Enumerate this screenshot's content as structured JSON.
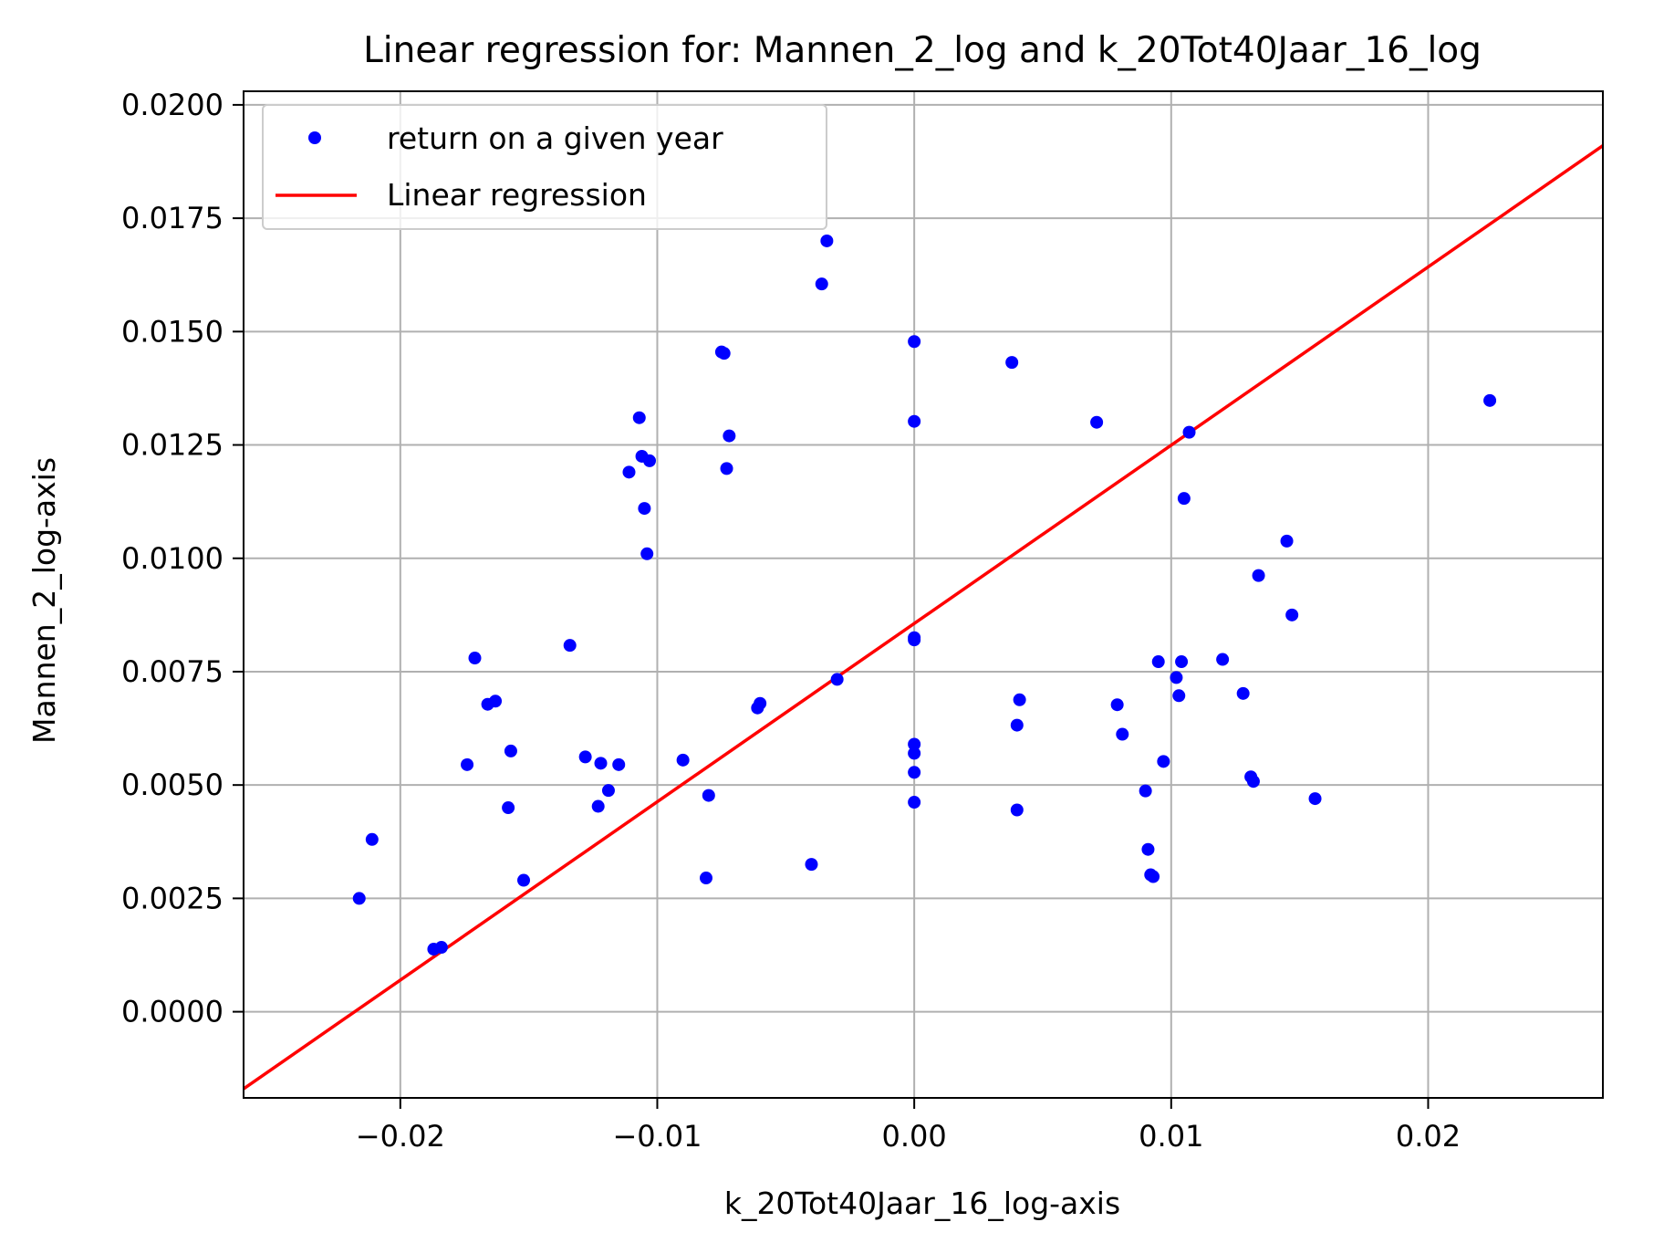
{
  "chart_data": {
    "type": "scatter",
    "title": "Linear regression for: Mannen_2_log and k_20Tot40Jaar_16_log",
    "xlabel": "k_20Tot40Jaar_16_log-axis",
    "ylabel": "Mannen_2_log-axis",
    "xlim": [
      -0.0261,
      0.0268
    ],
    "ylim": [
      -0.0019,
      0.0203
    ],
    "xticks": [
      -0.02,
      -0.01,
      0.0,
      0.01,
      0.02
    ],
    "xtick_labels": [
      "−0.02",
      "−0.01",
      "0.00",
      "0.01",
      "0.02"
    ],
    "yticks": [
      0.0,
      0.0025,
      0.005,
      0.0075,
      0.01,
      0.0125,
      0.015,
      0.0175,
      0.02
    ],
    "ytick_labels": [
      "0.0000",
      "0.0025",
      "0.0050",
      "0.0075",
      "0.0100",
      "0.0125",
      "0.0150",
      "0.0175",
      "0.0200"
    ],
    "grid": true,
    "legend_position": "top-left",
    "colors": {
      "points": "#0000ff",
      "line": "#ff0000",
      "grid": "#b0b0b0"
    },
    "series": [
      {
        "name": "return on a given year",
        "kind": "scatter",
        "points": [
          [
            -0.0216,
            0.0025
          ],
          [
            -0.0211,
            0.0038
          ],
          [
            -0.0187,
            0.00138
          ],
          [
            -0.0184,
            0.00142
          ],
          [
            -0.0171,
            0.0078
          ],
          [
            -0.0174,
            0.00545
          ],
          [
            -0.0166,
            0.00678
          ],
          [
            -0.0163,
            0.00685
          ],
          [
            -0.0157,
            0.00575
          ],
          [
            -0.0158,
            0.0045
          ],
          [
            -0.0152,
            0.0029
          ],
          [
            -0.0134,
            0.00808
          ],
          [
            -0.0128,
            0.00562
          ],
          [
            -0.0122,
            0.00548
          ],
          [
            -0.0123,
            0.00453
          ],
          [
            -0.0119,
            0.00488
          ],
          [
            -0.0115,
            0.00545
          ],
          [
            -0.0111,
            0.0119
          ],
          [
            -0.0107,
            0.0131
          ],
          [
            -0.0106,
            0.01225
          ],
          [
            -0.0105,
            0.0111
          ],
          [
            -0.0103,
            0.01215
          ],
          [
            -0.0104,
            0.0101
          ],
          [
            -0.009,
            0.00555
          ],
          [
            -0.008,
            0.00477
          ],
          [
            -0.0081,
            0.00295
          ],
          [
            -0.0075,
            0.01455
          ],
          [
            -0.0074,
            0.01452
          ],
          [
            -0.0072,
            0.0127
          ],
          [
            -0.0073,
            0.01198
          ],
          [
            -0.0061,
            0.0067
          ],
          [
            -0.006,
            0.0068
          ],
          [
            -0.004,
            0.00325
          ],
          [
            -0.0036,
            0.01605
          ],
          [
            -0.0034,
            0.017
          ],
          [
            -0.003,
            0.00733
          ],
          [
            0.0,
            0.01478
          ],
          [
            0.0,
            0.01302
          ],
          [
            0.0,
            0.00825
          ],
          [
            0.0,
            0.0082
          ],
          [
            0.0,
            0.0059
          ],
          [
            0.0,
            0.0057
          ],
          [
            0.0,
            0.00528
          ],
          [
            0.0,
            0.00462
          ],
          [
            0.0038,
            0.01432
          ],
          [
            0.0041,
            0.00688
          ],
          [
            0.004,
            0.00632
          ],
          [
            0.004,
            0.00445
          ],
          [
            0.0071,
            0.013
          ],
          [
            0.0079,
            0.00677
          ],
          [
            0.0081,
            0.00612
          ],
          [
            0.009,
            0.00487
          ],
          [
            0.0091,
            0.00358
          ],
          [
            0.0092,
            0.00302
          ],
          [
            0.0093,
            0.00298
          ],
          [
            0.0095,
            0.00772
          ],
          [
            0.0097,
            0.00552
          ],
          [
            0.0102,
            0.00737
          ],
          [
            0.0103,
            0.00697
          ],
          [
            0.0104,
            0.00772
          ],
          [
            0.0105,
            0.01132
          ],
          [
            0.0107,
            0.01278
          ],
          [
            0.012,
            0.00777
          ],
          [
            0.0128,
            0.00702
          ],
          [
            0.0131,
            0.00518
          ],
          [
            0.0132,
            0.00508
          ],
          [
            0.0134,
            0.00962
          ],
          [
            0.0145,
            0.01038
          ],
          [
            0.0147,
            0.00875
          ],
          [
            0.0156,
            0.0047
          ],
          [
            0.0224,
            0.01348
          ]
        ]
      },
      {
        "name": "Linear regression",
        "kind": "line",
        "points": [
          [
            -0.0261,
            -0.0017
          ],
          [
            0.0268,
            0.0191
          ]
        ]
      }
    ]
  }
}
